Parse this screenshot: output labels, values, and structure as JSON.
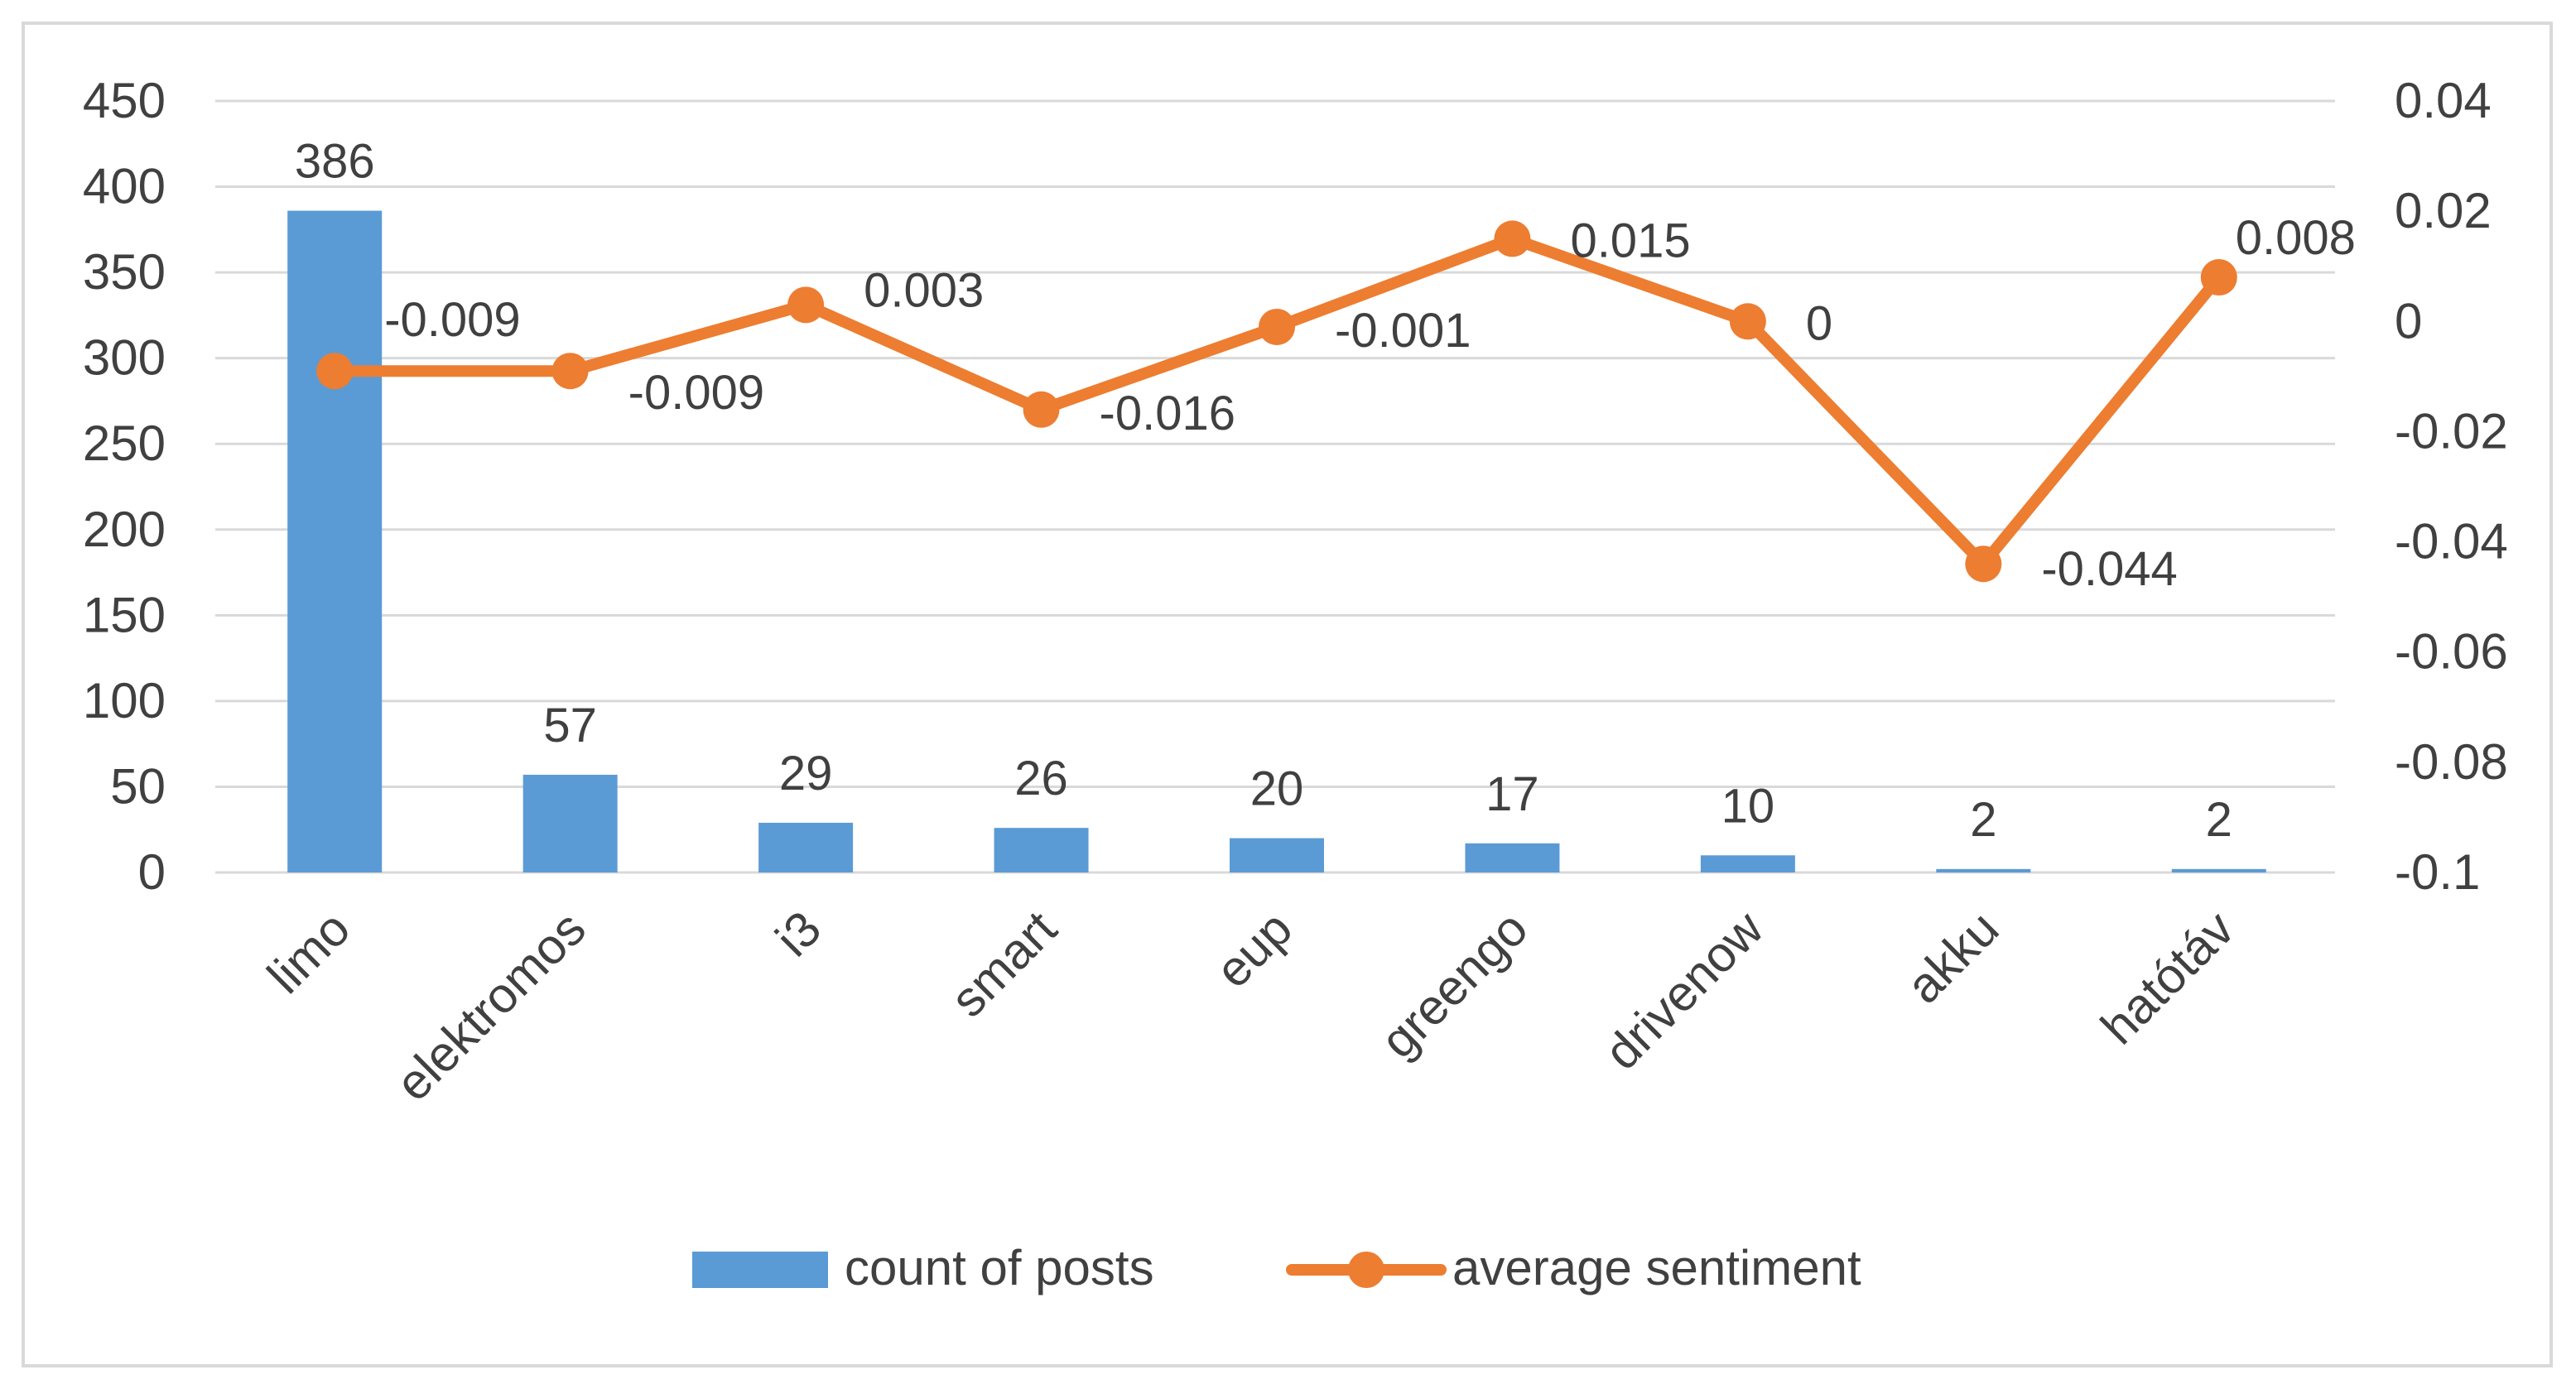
{
  "chart_data": {
    "type": "bar+line",
    "categories": [
      "limo",
      "elektromos",
      "i3",
      "smart",
      "eup",
      "greengo",
      "drivenow",
      "akku",
      "hatótáv"
    ],
    "series": [
      {
        "name": "count of posts",
        "kind": "bar",
        "axis": "left",
        "color": "#5b9bd5",
        "values": [
          386,
          57,
          29,
          26,
          20,
          17,
          10,
          2,
          2
        ],
        "labels": [
          "386",
          "57",
          "29",
          "26",
          "20",
          "17",
          "10",
          "2",
          "2"
        ]
      },
      {
        "name": "average sentiment",
        "kind": "line",
        "axis": "right",
        "color": "#ed7d31",
        "values": [
          -0.009,
          -0.009,
          0.003,
          -0.016,
          -0.001,
          0.015,
          0,
          -0.044,
          0.008
        ],
        "labels": [
          "-0.009",
          "-0.009",
          "0.003",
          "-0.016",
          "-0.001",
          "0.015",
          "0",
          "-0.044",
          "0.008"
        ]
      }
    ],
    "left_axis": {
      "min": 0,
      "max": 450,
      "step": 50,
      "tick_labels": [
        "0",
        "50",
        "100",
        "150",
        "200",
        "250",
        "300",
        "350",
        "400",
        "450"
      ]
    },
    "right_axis": {
      "min": -0.1,
      "max": 0.04,
      "step": 0.02,
      "tick_labels": [
        "-0.1",
        "-0.08",
        "-0.06",
        "-0.04",
        "-0.02",
        "0",
        "0.02",
        "0.04"
      ]
    },
    "grid": true,
    "legend": {
      "position": "bottom",
      "entries": [
        "count of posts",
        "average sentiment"
      ]
    },
    "gridline_color": "#d9d9d9",
    "axis_text_color": "#404040"
  }
}
